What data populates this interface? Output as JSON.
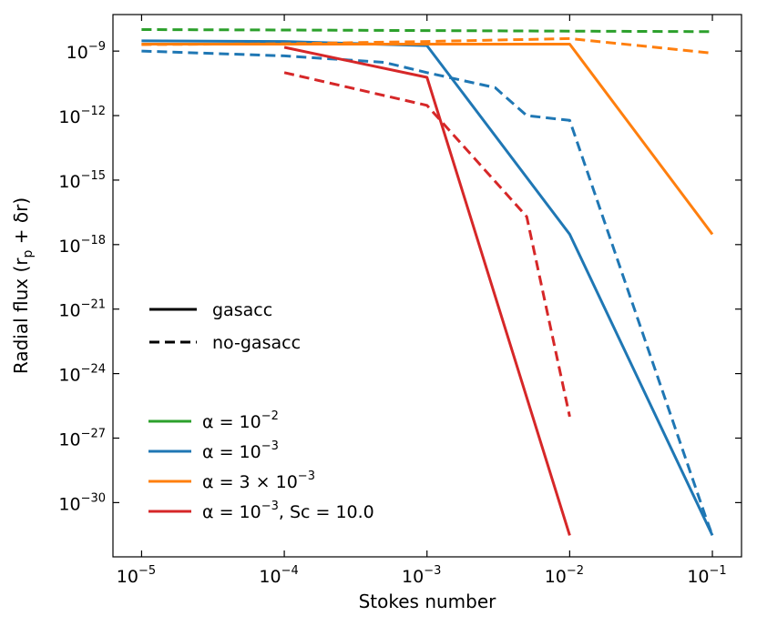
{
  "chart_data": {
    "type": "line",
    "xlabel": "Stokes number",
    "ylabel": "Radial flux (r",
    "ylabel_sub": "p",
    "ylabel_tail": " + δr)",
    "xscale": "log",
    "yscale": "log",
    "xlim": [
      6.3e-06,
      0.16
    ],
    "ylim": [
      3e-33,
      5e-08
    ],
    "x_ticks": [
      {
        "base": "10",
        "exp": "−5",
        "value": 1e-05
      },
      {
        "base": "10",
        "exp": "−4",
        "value": 0.0001
      },
      {
        "base": "10",
        "exp": "−3",
        "value": 0.001
      },
      {
        "base": "10",
        "exp": "−2",
        "value": 0.01
      },
      {
        "base": "10",
        "exp": "−1",
        "value": 0.1
      }
    ],
    "y_ticks": [
      {
        "base": "10",
        "exp": "−9",
        "value": 1e-09
      },
      {
        "base": "10",
        "exp": "−12",
        "value": 1e-12
      },
      {
        "base": "10",
        "exp": "−15",
        "value": 1e-15
      },
      {
        "base": "10",
        "exp": "−18",
        "value": 1e-18
      },
      {
        "base": "10",
        "exp": "−21",
        "value": 1e-21
      },
      {
        "base": "10",
        "exp": "−24",
        "value": 1e-24
      },
      {
        "base": "10",
        "exp": "−27",
        "value": 1e-27
      },
      {
        "base": "10",
        "exp": "−30",
        "value": 1e-30
      }
    ],
    "style_legend": [
      {
        "label": "gasacc",
        "dash": "solid"
      },
      {
        "label": "no-gasacc",
        "dash": "dashed"
      }
    ],
    "color_legend": [
      {
        "pre": "α = 10",
        "sup": "−2",
        "post": "",
        "color": "#2ca02c"
      },
      {
        "pre": "α = 10",
        "sup": "−3",
        "post": "",
        "color": "#1f77b4"
      },
      {
        "pre": "α = 3 × 10",
        "sup": "−3",
        "post": "",
        "color": "#ff7f0e"
      },
      {
        "pre": "α = 10",
        "sup": "−3",
        "post": ", Sc = 10.0",
        "color": "#d62728"
      }
    ],
    "series": [
      {
        "color": "#2ca02c",
        "dash": "dashed",
        "x": [
          1e-05,
          0.0001,
          0.001,
          0.01,
          0.1
        ],
        "y": [
          1e-08,
          9.5e-09,
          9e-09,
          8.5e-09,
          8e-09
        ]
      },
      {
        "color": "#1f77b4",
        "dash": "solid",
        "x": [
          1e-05,
          0.0001,
          0.001,
          0.01,
          0.1
        ],
        "y": [
          3e-09,
          2.8e-09,
          1.8e-09,
          3e-18,
          3e-32
        ]
      },
      {
        "color": "#1f77b4",
        "dash": "dashed",
        "x": [
          1e-05,
          0.0001,
          0.0005,
          0.001,
          0.003,
          0.005,
          0.01,
          0.09,
          0.1
        ],
        "y": [
          1e-09,
          6e-10,
          3e-10,
          1e-10,
          2e-11,
          1e-12,
          6e-13,
          2e-31,
          3e-32
        ]
      },
      {
        "color": "#ff7f0e",
        "dash": "solid",
        "x": [
          1e-05,
          0.0001,
          0.001,
          0.01,
          0.1
        ],
        "y": [
          2.1e-09,
          2.1e-09,
          2.1e-09,
          2.1e-09,
          3e-18
        ]
      },
      {
        "color": "#ff7f0e",
        "dash": "dashed",
        "x": [
          1e-05,
          0.0001,
          0.001,
          0.01,
          0.1
        ],
        "y": [
          2e-09,
          2.2e-09,
          2.8e-09,
          3.8e-09,
          8e-10
        ]
      },
      {
        "color": "#d62728",
        "dash": "solid",
        "x": [
          0.0001,
          0.001,
          0.01
        ],
        "y": [
          1.5e-09,
          6e-11,
          3e-32
        ]
      },
      {
        "color": "#d62728",
        "dash": "dashed",
        "x": [
          0.0001,
          0.001,
          0.005,
          0.01
        ],
        "y": [
          1e-10,
          3e-12,
          2e-17,
          1e-26
        ]
      }
    ]
  }
}
